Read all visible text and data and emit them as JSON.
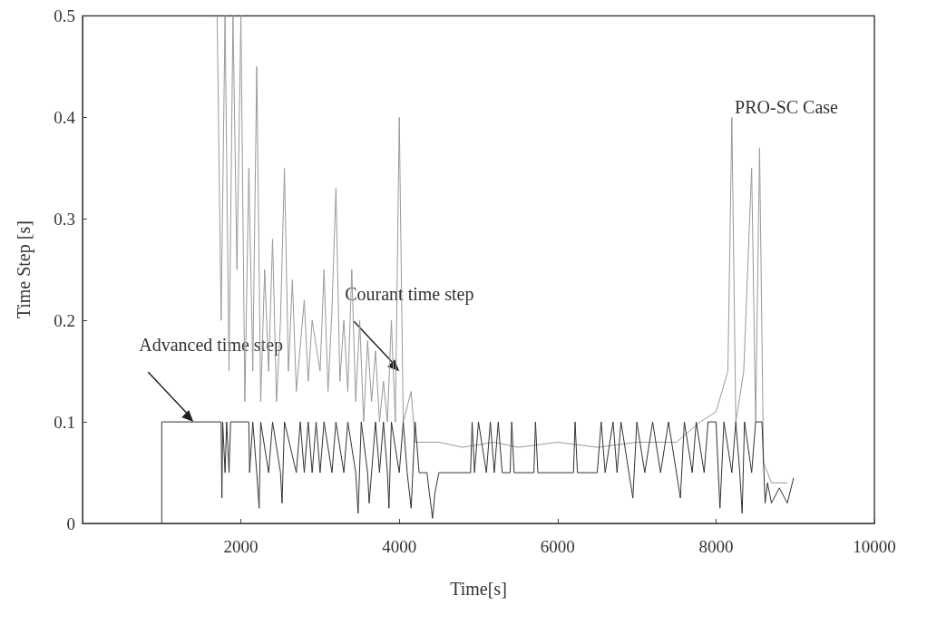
{
  "chart_data": {
    "type": "line",
    "xlabel": "Time[s]",
    "ylabel": "Time Step [s]",
    "xlim": [
      0,
      10000
    ],
    "xticks": [
      2000,
      4000,
      6000,
      8000,
      10000
    ],
    "ylim": [
      0,
      0.5
    ],
    "yticks": [
      0,
      0.1,
      0.2,
      0.3,
      0.4,
      0.5
    ],
    "grid": false,
    "marker": "none",
    "line_style": "solid",
    "series": [
      {
        "color": "#999999",
        "x": [
          1700,
          1750,
          1800,
          1850,
          1900,
          1950,
          2000,
          2050,
          2100,
          2150,
          2200,
          2250,
          2300,
          2350,
          2400,
          2450,
          2500,
          2550,
          2600,
          2650,
          2700,
          2800,
          2850,
          2900,
          3000,
          3050,
          3100,
          3150,
          3200,
          3250,
          3300,
          3350,
          3400,
          3450,
          3500,
          3550,
          3600,
          3650,
          3700,
          3750,
          3800,
          3850,
          3900,
          3950,
          4000,
          4050,
          4150,
          4200,
          4500,
          4800,
          5200,
          5500,
          6000,
          6500,
          7000,
          7500,
          7800,
          8000,
          8150,
          8200,
          8250,
          8350,
          8450,
          8500,
          8550,
          8600,
          8700,
          8900
        ],
        "values": [
          0.5,
          0.2,
          0.5,
          0.15,
          0.5,
          0.25,
          0.5,
          0.12,
          0.35,
          0.15,
          0.45,
          0.12,
          0.25,
          0.15,
          0.28,
          0.12,
          0.2,
          0.35,
          0.15,
          0.24,
          0.13,
          0.22,
          0.14,
          0.2,
          0.15,
          0.25,
          0.13,
          0.21,
          0.33,
          0.14,
          0.2,
          0.13,
          0.25,
          0.12,
          0.2,
          0.1,
          0.18,
          0.12,
          0.17,
          0.1,
          0.14,
          0.1,
          0.2,
          0.1,
          0.4,
          0.1,
          0.13,
          0.08,
          0.08,
          0.075,
          0.08,
          0.075,
          0.08,
          0.075,
          0.08,
          0.08,
          0.1,
          0.11,
          0.15,
          0.4,
          0.1,
          0.15,
          0.35,
          0.1,
          0.37,
          0.06,
          0.04,
          0.04
        ]
      },
      {
        "color": "#333333",
        "x": [
          1000,
          1000,
          1750,
          1760,
          1770,
          1800,
          1820,
          1850,
          1870,
          2100,
          2110,
          2150,
          2200,
          2230,
          2250,
          2350,
          2400,
          2500,
          2520,
          2550,
          2700,
          2750,
          2800,
          2850,
          2900,
          2950,
          3000,
          3050,
          3150,
          3200,
          3300,
          3350,
          3450,
          3480,
          3520,
          3600,
          3620,
          3700,
          3750,
          3800,
          3850,
          3870,
          3900,
          4000,
          4050,
          4100,
          4150,
          4200,
          4250,
          4350,
          4380,
          4420,
          4450,
          4500,
          4900,
          4920,
          4950,
          5000,
          5100,
          5150,
          5200,
          5250,
          5300,
          5400,
          5420,
          5450,
          5700,
          5720,
          5750,
          6200,
          6220,
          6250,
          6500,
          6550,
          6600,
          6700,
          6750,
          6800,
          6900,
          6950,
          7000,
          7100,
          7200,
          7300,
          7400,
          7500,
          7550,
          7600,
          7700,
          7750,
          7850,
          7900,
          8000,
          8050,
          8100,
          8200,
          8250,
          8300,
          8330,
          8360,
          8450,
          8500,
          8580,
          8620,
          8650,
          8700,
          8800,
          8900,
          8980
        ],
        "values": [
          0,
          0.1,
          0.1,
          0.025,
          0.1,
          0.05,
          0.1,
          0.05,
          0.1,
          0.1,
          0.05,
          0.1,
          0.05,
          0.015,
          0.1,
          0.05,
          0.1,
          0.05,
          0.02,
          0.1,
          0.05,
          0.1,
          0.05,
          0.1,
          0.05,
          0.1,
          0.05,
          0.1,
          0.05,
          0.1,
          0.05,
          0.1,
          0.05,
          0.01,
          0.1,
          0.05,
          0.02,
          0.1,
          0.05,
          0.1,
          0.05,
          0.015,
          0.1,
          0.05,
          0.1,
          0.05,
          0.015,
          0.1,
          0.05,
          0.05,
          0.03,
          0.005,
          0.03,
          0.05,
          0.05,
          0.1,
          0.05,
          0.1,
          0.05,
          0.1,
          0.05,
          0.1,
          0.05,
          0.05,
          0.1,
          0.05,
          0.05,
          0.1,
          0.05,
          0.05,
          0.1,
          0.05,
          0.05,
          0.1,
          0.05,
          0.1,
          0.05,
          0.1,
          0.05,
          0.025,
          0.1,
          0.05,
          0.1,
          0.05,
          0.1,
          0.05,
          0.025,
          0.1,
          0.05,
          0.1,
          0.05,
          0.1,
          0.1,
          0.015,
          0.1,
          0.05,
          0.1,
          0.05,
          0.01,
          0.1,
          0.05,
          0.1,
          0.1,
          0.02,
          0.04,
          0.02,
          0.035,
          0.02,
          0.045
        ]
      }
    ],
    "annotations": [
      {
        "text": "Courant time step",
        "x": 4000,
        "y": 0.15
      },
      {
        "text": "Advanced time step",
        "x": 1400,
        "y": 0.1
      },
      "PRO-SC Case"
    ]
  }
}
